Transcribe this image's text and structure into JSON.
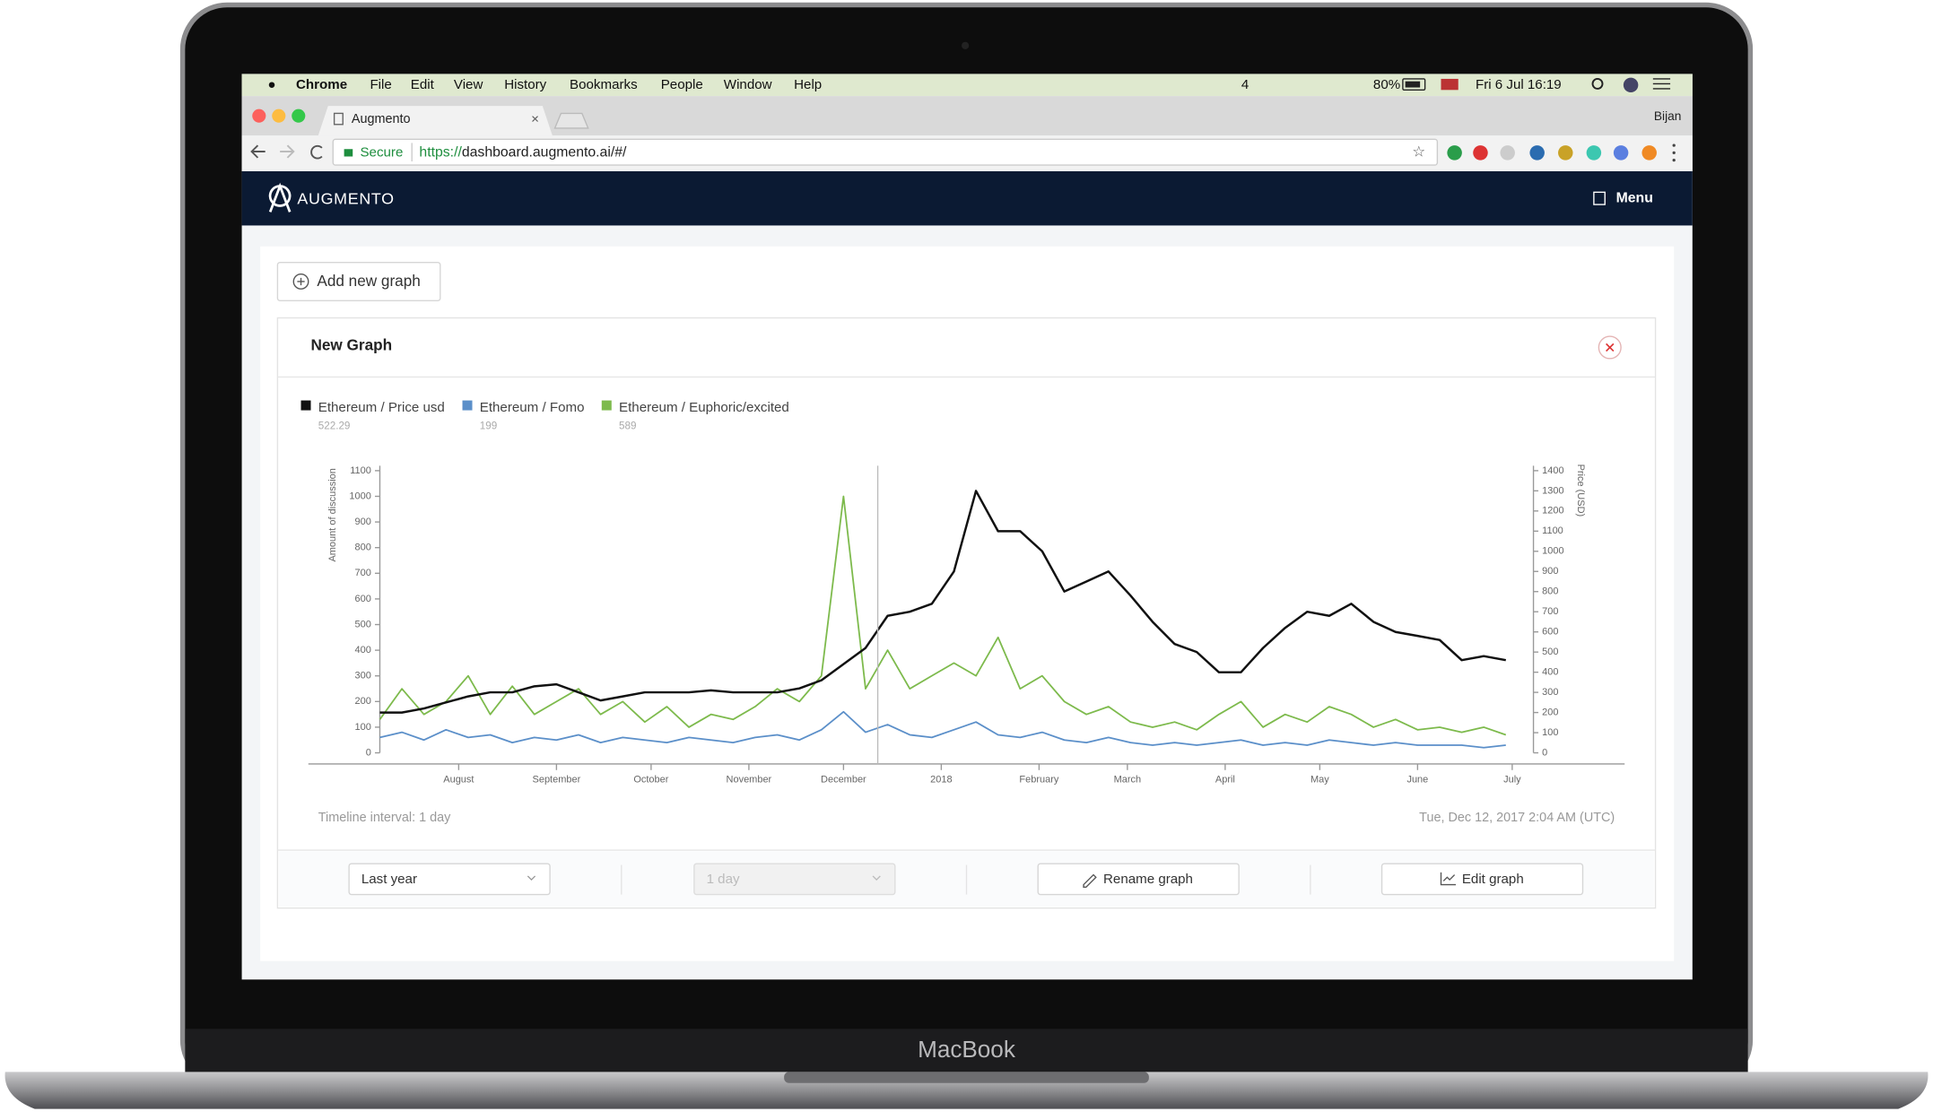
{
  "menubar": {
    "app": "Chrome",
    "items": [
      "File",
      "Edit",
      "View",
      "History",
      "Bookmarks",
      "People",
      "Window",
      "Help"
    ],
    "status": [
      "4",
      "80%",
      "Fri 6 Jul  16:19"
    ]
  },
  "browser": {
    "tab": "Augmento",
    "close": "×",
    "user": "Bijan",
    "secure": "Secure",
    "url_scheme": "https://",
    "url_rest": "dashboard.augmento.ai/#/"
  },
  "app": {
    "brand": "AUGMENTO",
    "menu": "Menu",
    "add_button": "Add new graph",
    "card_title": "New Graph",
    "interval": "Timeline interval: 1 day",
    "timestamp": "Tue, Dec 12, 2017 2:04 AM (UTC)",
    "controls": [
      "Last year",
      "1 day",
      "Rename graph",
      "Edit graph"
    ]
  },
  "device": {
    "label": "MacBook"
  },
  "chart_data": {
    "type": "line",
    "ylabel": "Amount of discussion",
    "y2label": "Price (USD)",
    "x": [
      0,
      7,
      14,
      21,
      28,
      35,
      42,
      49,
      56,
      63,
      70,
      77,
      84,
      91,
      98,
      105,
      112,
      119,
      126,
      133,
      140,
      147,
      154,
      161,
      168,
      175,
      182,
      189,
      196,
      203,
      210,
      217,
      224,
      231,
      238,
      245,
      252,
      259,
      266,
      273,
      280,
      287,
      294,
      301,
      308,
      315,
      322,
      329,
      336,
      343,
      350,
      357
    ],
    "xlim": [
      0,
      363
    ],
    "xticks": [
      {
        "value": 25,
        "label": "August"
      },
      {
        "value": 56,
        "label": "September"
      },
      {
        "value": 86,
        "label": "October"
      },
      {
        "value": 117,
        "label": "November"
      },
      {
        "value": 147,
        "label": "December"
      },
      {
        "value": 178,
        "label": "2018"
      },
      {
        "value": 209,
        "label": "February"
      },
      {
        "value": 237,
        "label": "March"
      },
      {
        "value": 268,
        "label": "April"
      },
      {
        "value": 298,
        "label": "May"
      },
      {
        "value": 329,
        "label": "June"
      },
      {
        "value": 359,
        "label": "July"
      }
    ],
    "ylim": [
      0,
      1100
    ],
    "yticks": [
      0,
      100,
      200,
      300,
      400,
      500,
      600,
      700,
      800,
      900,
      1000,
      1100
    ],
    "y2lim": [
      0,
      1400
    ],
    "y2ticks": [
      0,
      100,
      200,
      300,
      400,
      500,
      600,
      700,
      800,
      900,
      1000,
      1100,
      1200,
      1300,
      1400
    ],
    "series": [
      {
        "name": "Ethereum / Price usd",
        "color": "#111111",
        "axis": "y2",
        "current": 522.29,
        "values": [
          200,
          200,
          220,
          250,
          280,
          300,
          300,
          330,
          340,
          300,
          260,
          280,
          300,
          300,
          300,
          310,
          300,
          300,
          300,
          320,
          360,
          440,
          520,
          680,
          700,
          740,
          900,
          1300,
          1100,
          1100,
          1000,
          800,
          850,
          900,
          780,
          650,
          540,
          500,
          400,
          400,
          520,
          620,
          700,
          680,
          740,
          650,
          600,
          580,
          560,
          460,
          480,
          460
        ]
      },
      {
        "name": "Ethereum / Fomo",
        "color": "#5b8fc9",
        "axis": "y",
        "current": 199,
        "values": [
          60,
          80,
          50,
          90,
          60,
          70,
          40,
          60,
          50,
          70,
          40,
          60,
          50,
          40,
          60,
          50,
          40,
          60,
          70,
          50,
          90,
          160,
          80,
          110,
          70,
          60,
          90,
          120,
          70,
          60,
          80,
          50,
          40,
          60,
          40,
          30,
          40,
          30,
          40,
          50,
          30,
          40,
          30,
          50,
          40,
          30,
          40,
          30,
          30,
          30,
          20,
          30
        ]
      },
      {
        "name": "Ethereum / Euphoric/excited",
        "color": "#7dba4c",
        "axis": "y",
        "current": 589,
        "values": [
          130,
          250,
          150,
          200,
          300,
          150,
          260,
          150,
          200,
          250,
          150,
          200,
          120,
          180,
          100,
          150,
          130,
          180,
          250,
          200,
          300,
          1000,
          250,
          400,
          250,
          300,
          350,
          300,
          450,
          250,
          300,
          200,
          150,
          180,
          120,
          100,
          120,
          90,
          150,
          200,
          100,
          150,
          120,
          180,
          150,
          100,
          130,
          90,
          100,
          80,
          100,
          70
        ]
      }
    ]
  }
}
